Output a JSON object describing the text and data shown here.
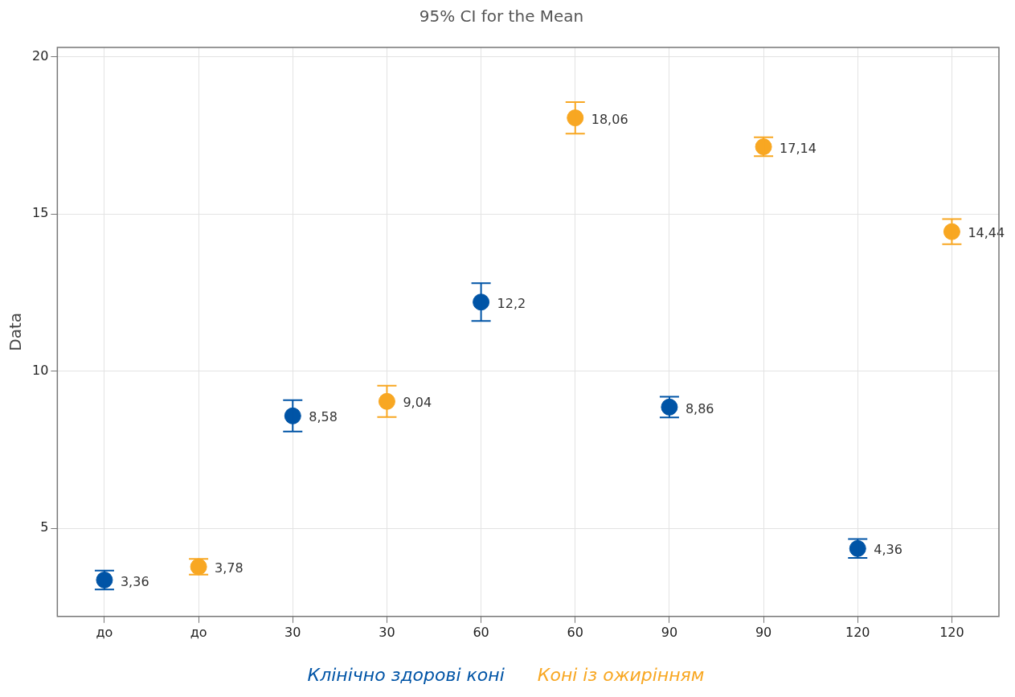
{
  "chart_data": {
    "type": "scatter",
    "title": "95% CI for the Mean",
    "ylabel": "Data",
    "categories": [
      "до",
      "до",
      "30",
      "30",
      "60",
      "60",
      "90",
      "90",
      "120",
      "120"
    ],
    "series": [
      {
        "name": "Клінічно здорові коні",
        "color": "#0054a6",
        "values": [
          3.36,
          null,
          8.58,
          null,
          12.2,
          null,
          8.86,
          null,
          4.36,
          null
        ],
        "errors": [
          0.3,
          null,
          0.5,
          null,
          0.6,
          null,
          0.33,
          null,
          0.3,
          null
        ],
        "value_labels": [
          "3,36",
          null,
          "8,58",
          null,
          "12,2",
          null,
          "8,86",
          null,
          "4,36",
          null
        ]
      },
      {
        "name": "Коні із ожирінням",
        "color": "#f8a722",
        "values": [
          null,
          3.78,
          null,
          9.04,
          null,
          18.06,
          null,
          17.14,
          null,
          14.44
        ],
        "errors": [
          null,
          0.25,
          null,
          0.5,
          null,
          0.5,
          null,
          0.3,
          null,
          0.4
        ],
        "value_labels": [
          null,
          "3,78",
          null,
          "9,04",
          null,
          "18,06",
          null,
          "17,14",
          null,
          "14,44"
        ]
      }
    ],
    "ylim": [
      2.2,
      20.3
    ],
    "yticks": [
      5,
      10,
      15,
      20
    ],
    "grid": true,
    "legend": "bottom",
    "marker": "circle"
  }
}
